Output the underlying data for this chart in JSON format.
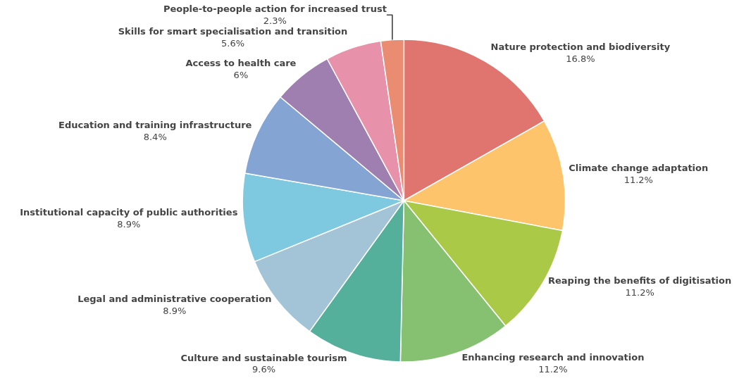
{
  "chart_data": {
    "type": "pie",
    "categories": [
      "Nature protection and biodiversity",
      "Climate change adaptation",
      "Reaping the benefits of digitisation",
      "Enhancing research and innovation",
      "Culture and sustainable tourism",
      "Legal and administrative cooperation",
      "Institutional capacity of public authorities",
      "Education and training infrastructure",
      "Access to health care",
      "Skills for smart specialisation and transition",
      "People-to-people action for increased trust"
    ],
    "values": [
      16.8,
      11.2,
      11.2,
      11.2,
      9.6,
      8.9,
      8.9,
      8.4,
      6,
      5.6,
      2.3
    ],
    "value_labels": [
      "16.8%",
      "11.2%",
      "11.2%",
      "11.2%",
      "9.6%",
      "8.9%",
      "8.9%",
      "8.4%",
      "6%",
      "5.6%",
      "2.3%"
    ],
    "colors": [
      "#e07570",
      "#fdc46b",
      "#aac947",
      "#86c172",
      "#55b09b",
      "#a2c4d6",
      "#7ec8e0",
      "#84a4d4",
      "#9e7fb0",
      "#e891ab",
      "#e98c72"
    ],
    "legend": false
  }
}
